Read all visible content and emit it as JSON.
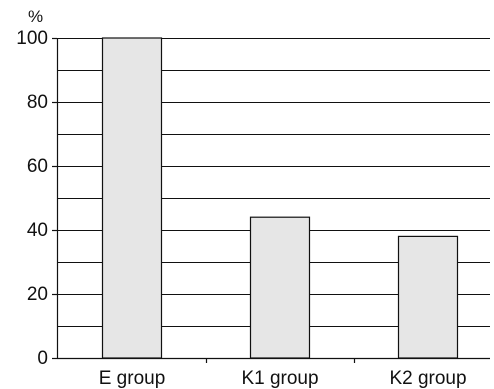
{
  "chart_data": {
    "type": "bar",
    "title": "",
    "xlabel": "",
    "ylabel": "%",
    "categories": [
      "E group",
      "K1 group",
      "K2 group"
    ],
    "values": [
      100,
      44,
      38
    ],
    "ylim": [
      0,
      100
    ],
    "major_ticks": [
      0,
      20,
      40,
      60,
      80,
      100
    ],
    "minor_step": 10,
    "grid": true,
    "legend": "none",
    "colors": {
      "bar_fill": "#e6e6e6",
      "bar_stroke": "#111111",
      "grid": "#111111",
      "axis": "#111111"
    }
  }
}
